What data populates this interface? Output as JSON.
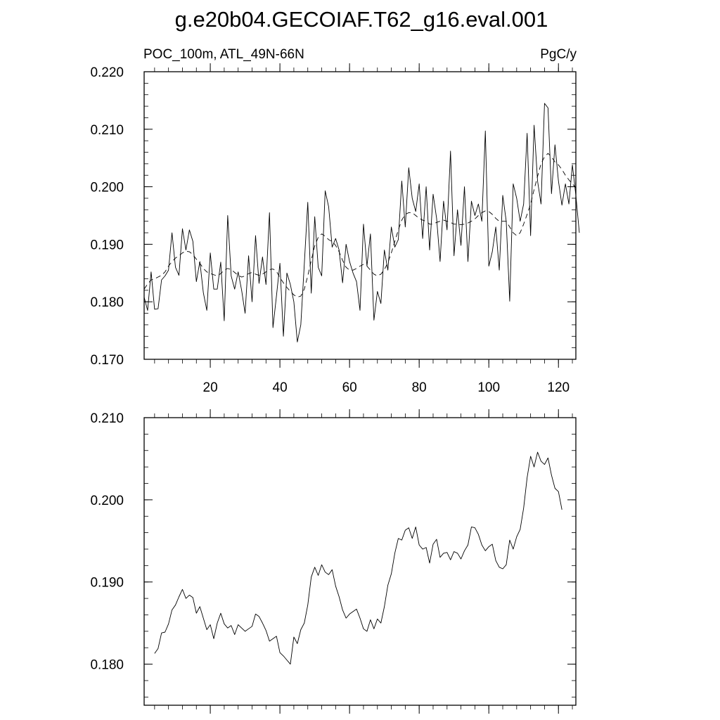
{
  "title": "g.e20b04.GECOIAF.T62_g16.eval.001",
  "chart_data": [
    {
      "type": "line",
      "left_label": "POC_100m, ATL_49N-66N",
      "right_label": "PgC/y",
      "xlim": [
        1,
        125
      ],
      "ylim": [
        0.17,
        0.22
      ],
      "x_major_ticks": [
        20,
        40,
        60,
        80,
        100,
        120
      ],
      "x_tick_labels": [
        "20",
        "40",
        "60",
        "80",
        "100",
        "120"
      ],
      "y_major_ticks": [
        0.17,
        0.18,
        0.19,
        0.2,
        0.21,
        0.22
      ],
      "y_tick_labels": [
        "0.170",
        "0.180",
        "0.190",
        "0.200",
        "0.210",
        "0.220"
      ],
      "y_minor_step": 0.002,
      "x_minor_step": 4,
      "grid": false,
      "series": [
        {
          "style": "solid",
          "x_start": 1,
          "values": [
            0.1808,
            0.1785,
            0.1852,
            0.1787,
            0.1788,
            0.1838,
            0.1845,
            0.1855,
            0.192,
            0.186,
            0.1846,
            0.1927,
            0.189,
            0.1925,
            0.1905,
            0.1835,
            0.187,
            0.1816,
            0.1785,
            0.1885,
            0.1822,
            0.1822,
            0.1869,
            0.1767,
            0.195,
            0.1845,
            0.1822,
            0.1852,
            0.182,
            0.178,
            0.188,
            0.18,
            0.1915,
            0.1832,
            0.1878,
            0.183,
            0.1955,
            0.1755,
            0.181,
            0.1867,
            0.174,
            0.185,
            0.183,
            0.18,
            0.173,
            0.176,
            0.1865,
            0.1973,
            0.1815,
            0.1948,
            0.186,
            0.1845,
            0.1993,
            0.1965,
            0.1895,
            0.191,
            0.189,
            0.1833,
            0.19,
            0.187,
            0.185,
            0.1835,
            0.1785,
            0.1935,
            0.1862,
            0.1918,
            0.1768,
            0.1818,
            0.1797,
            0.189,
            0.1855,
            0.193,
            0.1895,
            0.1908,
            0.201,
            0.193,
            0.2033,
            0.198,
            0.1957,
            0.2005,
            0.191,
            0.2,
            0.189,
            0.1987,
            0.1945,
            0.187,
            0.1975,
            0.1925,
            0.2062,
            0.188,
            0.196,
            0.1898,
            0.2,
            0.187,
            0.1975,
            0.195,
            0.197,
            0.194,
            0.2097,
            0.1862,
            0.1887,
            0.193,
            0.1855,
            0.1985,
            0.194,
            0.1801,
            0.2005,
            0.198,
            0.194,
            0.197,
            0.2093,
            0.1915,
            0.2107,
            0.201,
            0.197,
            0.2145,
            0.2137,
            0.1988,
            0.2073,
            0.201,
            0.1968,
            0.2005,
            0.197,
            0.2038,
            0.1985,
            0.192
          ]
        },
        {
          "style": "dashed",
          "x_start": 1,
          "values": [
            0.1822,
            0.1831,
            0.1838,
            0.184,
            0.1843,
            0.1846,
            0.1852,
            0.1862,
            0.187,
            0.1876,
            0.188,
            0.1885,
            0.1888,
            0.1887,
            0.1882,
            0.1874,
            0.1867,
            0.1858,
            0.1852,
            0.1849,
            0.1847,
            0.1845,
            0.1849,
            0.1855,
            0.1858,
            0.1856,
            0.1851,
            0.1846,
            0.1843,
            0.1845,
            0.1849,
            0.1851,
            0.1848,
            0.1846,
            0.1848,
            0.1852,
            0.1856,
            0.1857,
            0.1853,
            0.1842,
            0.1833,
            0.1825,
            0.1818,
            0.1812,
            0.1808,
            0.181,
            0.1822,
            0.1845,
            0.1872,
            0.1897,
            0.1912,
            0.1918,
            0.1914,
            0.1908,
            0.1905,
            0.1898,
            0.1887,
            0.1872,
            0.186,
            0.1855,
            0.1855,
            0.1858,
            0.1862,
            0.1865,
            0.1862,
            0.1855,
            0.1848,
            0.1845,
            0.1848,
            0.1856,
            0.1868,
            0.1885,
            0.1905,
            0.1925,
            0.1942,
            0.1952,
            0.1955,
            0.1955,
            0.195,
            0.1945,
            0.1942,
            0.194,
            0.1935,
            0.1935,
            0.1938,
            0.194,
            0.1942,
            0.194,
            0.1938,
            0.1935,
            0.1935,
            0.1934,
            0.1935,
            0.1937,
            0.194,
            0.1944,
            0.195,
            0.1955,
            0.1958,
            0.1957,
            0.1952,
            0.1945,
            0.194,
            0.194,
            0.194,
            0.193,
            0.192,
            0.1915,
            0.192,
            0.1935,
            0.1952,
            0.197,
            0.1995,
            0.2018,
            0.204,
            0.2052,
            0.2058,
            0.2052,
            0.2043,
            0.2038,
            0.203,
            0.202,
            0.2012,
            0.2005,
            0.1998
          ]
        }
      ]
    },
    {
      "type": "line",
      "xlim": [
        1,
        125
      ],
      "ylim": [
        0.175,
        0.21
      ],
      "x_major_ticks": [
        20,
        40,
        60,
        80,
        100,
        120
      ],
      "y_major_ticks": [
        0.18,
        0.19,
        0.2,
        0.21
      ],
      "y_tick_labels": [
        "0.180",
        "0.190",
        "0.200",
        "0.210"
      ],
      "y_minor_step": 0.002,
      "x_minor_step": 4,
      "grid": false,
      "series": [
        {
          "style": "solid",
          "x_start": 4,
          "values": [
            0.1813,
            0.1819,
            0.1838,
            0.1839,
            0.1849,
            0.1866,
            0.1872,
            0.1882,
            0.1891,
            0.188,
            0.1884,
            0.1881,
            0.1862,
            0.187,
            0.1856,
            0.1842,
            0.1848,
            0.1831,
            0.185,
            0.1862,
            0.1849,
            0.1844,
            0.1847,
            0.1836,
            0.1848,
            0.1844,
            0.184,
            0.1843,
            0.1846,
            0.1861,
            0.1858,
            0.185,
            0.1841,
            0.1828,
            0.1831,
            0.1834,
            0.1814,
            0.181,
            0.1805,
            0.18,
            0.1833,
            0.1825,
            0.1842,
            0.185,
            0.1872,
            0.1906,
            0.1918,
            0.1908,
            0.1921,
            0.1912,
            0.1909,
            0.1915,
            0.1895,
            0.1882,
            0.1866,
            0.1856,
            0.1861,
            0.1864,
            0.1867,
            0.1856,
            0.1843,
            0.184,
            0.1854,
            0.1843,
            0.1855,
            0.185,
            0.187,
            0.1896,
            0.191,
            0.1935,
            0.1953,
            0.1951,
            0.1963,
            0.1966,
            0.1953,
            0.1967,
            0.1945,
            0.194,
            0.1942,
            0.1923,
            0.1946,
            0.1952,
            0.193,
            0.1935,
            0.1936,
            0.1927,
            0.1937,
            0.1935,
            0.1928,
            0.1938,
            0.1945,
            0.1967,
            0.1966,
            0.1958,
            0.1945,
            0.1938,
            0.1943,
            0.1946,
            0.1926,
            0.1918,
            0.1916,
            0.1921,
            0.1951,
            0.194,
            0.1955,
            0.1964,
            0.199,
            0.2027,
            0.2053,
            0.204,
            0.2058,
            0.2047,
            0.2043,
            0.2051,
            0.203,
            0.2014,
            0.201,
            0.1988
          ]
        }
      ]
    }
  ]
}
